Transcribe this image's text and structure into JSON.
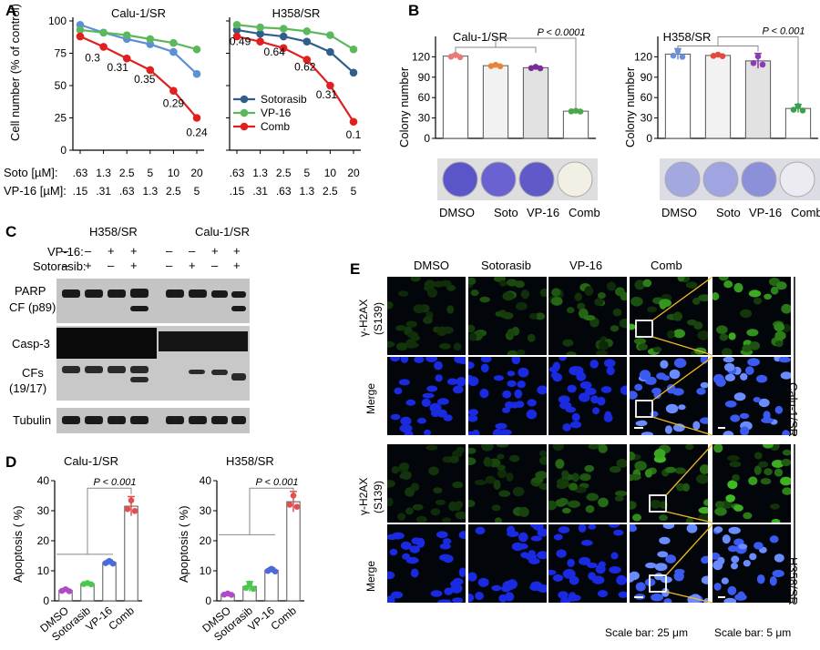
{
  "panels": {
    "A": "A",
    "B": "B",
    "C": "C",
    "D": "D",
    "E": "E"
  },
  "panelA": {
    "ylabel": "Cell number (% of control)",
    "yticks": [
      "0",
      "25",
      "50",
      "75",
      "100"
    ],
    "soto_label": "Soto [µM]:",
    "vp16_label": "VP-16 [µM]:",
    "soto_doses": [
      ".63",
      "1.3",
      "2.5",
      "5",
      "10",
      "20"
    ],
    "vp16_doses": [
      ".15",
      ".31",
      ".63",
      "1.3",
      "2.5",
      "5"
    ],
    "legend": [
      {
        "name": "Sotorasib",
        "color": "#2f5f8a"
      },
      {
        "name": "VP-16",
        "color": "#5cb85c"
      },
      {
        "name": "Comb",
        "color": "#e02020"
      }
    ]
  },
  "panelB": {
    "ylabel": "Colony number",
    "yticks": [
      "0",
      "30",
      "60",
      "90",
      "120"
    ],
    "xlabels": [
      "DMSO",
      "Soto",
      "VP-16",
      "Comb"
    ]
  },
  "panelC": {
    "cell_lines": [
      "H358/SR",
      "Calu-1/SR"
    ],
    "vp16_row_label": "VP-16:",
    "soto_row_label": "Sotorasib:",
    "vp16_signs": [
      "–",
      "–",
      "+",
      "+",
      "–",
      "–",
      "+",
      "+"
    ],
    "soto_signs": [
      "–",
      "+",
      "–",
      "+",
      "–",
      "+",
      "–",
      "+"
    ],
    "bands": [
      "PARP",
      "CF (p89)",
      "Casp-3",
      "CFs",
      "(19/17)",
      "Tubulin"
    ]
  },
  "panelD": {
    "ylabel": "Apoptosis ( %)",
    "yticks": [
      "0",
      "10",
      "20",
      "30",
      "40"
    ],
    "xlabels": [
      "DMSO",
      "Sotorasib",
      "VP-16",
      "Comb"
    ]
  },
  "panelE": {
    "columns": [
      "DMSO",
      "Sotorasib",
      "VP-16",
      "Comb"
    ],
    "row_label_h2ax": "γ-H2AX",
    "row_label_s139": "(S139)",
    "row_label_merge": "Merge",
    "side_calu": "Calu-1/SR",
    "side_h358": "H358/SR",
    "scale_25": "Scale bar: 25 μm",
    "scale_5": "Scale bar: 5 μm"
  },
  "chart_data": [
    {
      "type": "line",
      "title": "Calu-1/SR",
      "ylabel": "Cell number (% of control)",
      "ylim": [
        0,
        100
      ],
      "x": [
        1,
        2,
        3,
        4,
        5,
        6
      ],
      "series": [
        {
          "name": "Sotorasib",
          "color": "#5b8fd6",
          "values": [
            97,
            91,
            86,
            82,
            76,
            59
          ]
        },
        {
          "name": "VP-16",
          "color": "#5cb85c",
          "values": [
            93,
            91,
            89,
            86,
            83,
            78
          ]
        },
        {
          "name": "Comb",
          "color": "#e02020",
          "values": [
            88,
            80,
            71,
            62,
            46,
            25
          ]
        }
      ],
      "annotations": [
        "0.3",
        "0.31",
        "0.35",
        "0.29",
        "0.24"
      ]
    },
    {
      "type": "line",
      "title": "H358/SR",
      "ylim": [
        0,
        100
      ],
      "x": [
        1,
        2,
        3,
        4,
        5,
        6
      ],
      "series": [
        {
          "name": "Sotorasib",
          "color": "#2f5f8a",
          "values": [
            93,
            90,
            88,
            84,
            76,
            60
          ]
        },
        {
          "name": "VP-16",
          "color": "#5cb85c",
          "values": [
            97,
            95,
            94,
            92,
            89,
            78
          ]
        },
        {
          "name": "Comb",
          "color": "#e02020",
          "values": [
            88,
            84,
            79,
            70,
            50,
            22
          ]
        }
      ],
      "annotations": [
        "0.49",
        "0.64",
        "0.62",
        "0.31",
        "0.1"
      ]
    },
    {
      "type": "bar",
      "title": "Calu-1/SR",
      "ylabel": "Colony number",
      "ylim": [
        0,
        150
      ],
      "categories": [
        "DMSO",
        "Soto",
        "VP-16",
        "Comb"
      ],
      "values": [
        121,
        107,
        104,
        40
      ],
      "colors": [
        "#e87a7a",
        "#e8843a",
        "#7a2c9a",
        "#4aa84a"
      ],
      "pvalue": "P < 0.0001"
    },
    {
      "type": "bar",
      "title": "H358/SR",
      "ylabel": "Colony number",
      "ylim": [
        0,
        150
      ],
      "categories": [
        "DMSO",
        "Soto",
        "VP-16",
        "Comb"
      ],
      "values": [
        124,
        122,
        114,
        44
      ],
      "colors": [
        "#6c8fd6",
        "#e24a3a",
        "#8a3cb0",
        "#3aa050"
      ],
      "pvalue": "P < 0.001"
    },
    {
      "type": "bar",
      "title": "Calu-1/SR",
      "ylabel": "Apoptosis ( %)",
      "ylim": [
        0,
        40
      ],
      "categories": [
        "DMSO",
        "Sotorasib",
        "VP-16",
        "Comb"
      ],
      "values": [
        3.5,
        5.7,
        12.8,
        31.5
      ],
      "colors": [
        "#b04ac8",
        "#4ac84a",
        "#4a6ad6",
        "#e05050"
      ],
      "pvalue": "P < 0.001"
    },
    {
      "type": "bar",
      "title": "H358/SR",
      "ylabel": "Apoptosis ( %)",
      "ylim": [
        0,
        40
      ],
      "categories": [
        "DMSO",
        "Sotorasib",
        "VP-16",
        "Comb"
      ],
      "values": [
        2.2,
        4.8,
        10.2,
        33
      ],
      "colors": [
        "#b04ac8",
        "#4ac84a",
        "#4a6ad6",
        "#e05050"
      ],
      "pvalue": "P < 0.001"
    }
  ]
}
